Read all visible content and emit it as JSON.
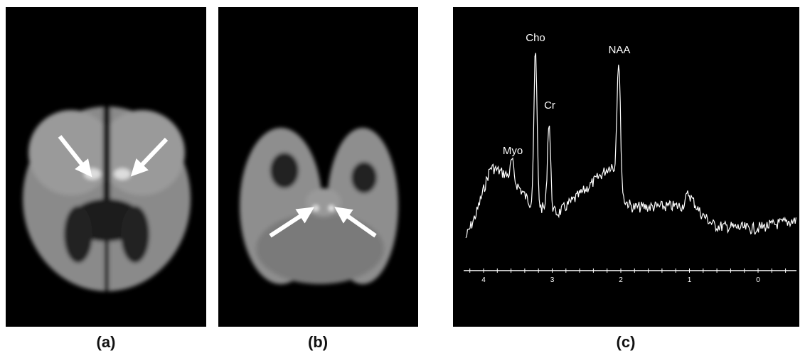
{
  "panels": [
    {
      "caption": "(a)"
    },
    {
      "caption": "(b)"
    },
    {
      "caption": "(c)",
      "peaks": [
        "Myo",
        "Cho",
        "Cr",
        "NAA"
      ],
      "axis_labels": [
        "4",
        "3",
        "2",
        "1",
        "0"
      ]
    }
  ]
}
